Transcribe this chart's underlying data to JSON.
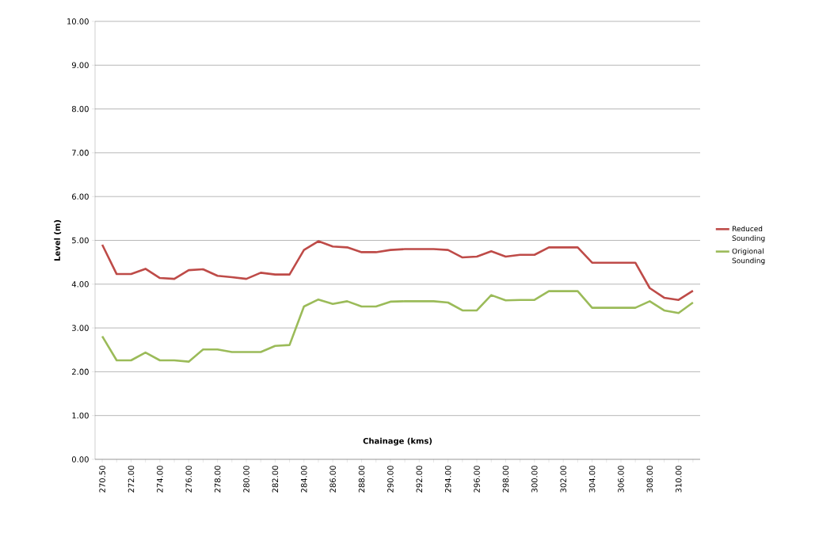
{
  "chart_data": {
    "type": "line",
    "xlabel": "Chainage (kms)",
    "ylabel": "Level (m)",
    "categories": [
      "270.50",
      null,
      "272.00",
      null,
      "274.00",
      null,
      "276.00",
      null,
      "278.00",
      null,
      "280.00",
      null,
      "282.00",
      null,
      "284.00",
      null,
      "286.00",
      null,
      "288.00",
      null,
      "290.00",
      null,
      "292.00",
      null,
      "294.00",
      null,
      "296.00",
      null,
      "298.00",
      null,
      "300.00",
      null,
      "302.00",
      null,
      "304.00",
      null,
      "306.00",
      null,
      "308.00",
      null,
      "310.00",
      null
    ],
    "series": [
      {
        "name": "Reduced Sounding",
        "color": "#be4b48",
        "values": [
          4.9,
          4.23,
          4.23,
          4.35,
          4.14,
          4.12,
          4.32,
          4.34,
          4.19,
          4.16,
          4.12,
          4.26,
          4.22,
          4.22,
          4.78,
          4.98,
          4.86,
          4.84,
          4.73,
          4.73,
          4.78,
          4.8,
          4.8,
          4.8,
          4.78,
          4.61,
          4.63,
          4.75,
          4.63,
          4.67,
          4.67,
          4.84,
          4.84,
          4.84,
          4.49,
          4.49,
          4.49,
          4.49,
          3.91,
          3.69,
          3.64,
          3.85
        ]
      },
      {
        "name": "Origional Sounding",
        "color": "#9bbb59",
        "values": [
          2.81,
          2.26,
          2.26,
          2.44,
          2.26,
          2.26,
          2.23,
          2.51,
          2.51,
          2.45,
          2.45,
          2.45,
          2.59,
          2.61,
          3.49,
          3.65,
          3.55,
          3.61,
          3.49,
          3.49,
          3.6,
          3.61,
          3.61,
          3.61,
          3.58,
          3.4,
          3.4,
          3.75,
          3.63,
          3.64,
          3.64,
          3.84,
          3.84,
          3.84,
          3.46,
          3.46,
          3.46,
          3.46,
          3.61,
          3.4,
          3.34,
          3.58
        ]
      }
    ],
    "ylim": [
      0,
      10
    ],
    "yticks": [
      {
        "value": 0,
        "label": "0.00"
      },
      {
        "value": 1,
        "label": "1.00"
      },
      {
        "value": 2,
        "label": "2.00"
      },
      {
        "value": 3,
        "label": "3.00"
      },
      {
        "value": 4,
        "label": "4.00"
      },
      {
        "value": 5,
        "label": "5.00"
      },
      {
        "value": 6,
        "label": "6.00"
      },
      {
        "value": 7,
        "label": "7.00"
      },
      {
        "value": 8,
        "label": "8.00"
      },
      {
        "value": 9,
        "label": "9.00"
      },
      {
        "value": 10,
        "label": "10.00"
      }
    ],
    "grid": "y",
    "legend": "right",
    "marker": "none",
    "line_style": "solid"
  }
}
